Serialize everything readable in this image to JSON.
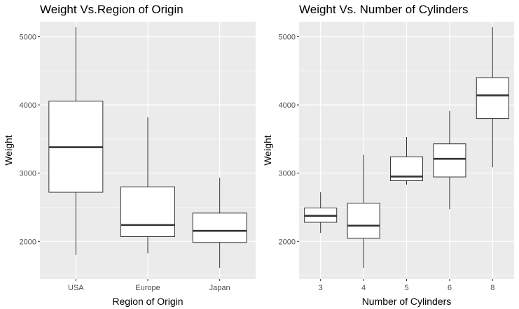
{
  "chart_data": [
    {
      "type": "boxplot",
      "title": "Weight Vs.Region of Origin",
      "xlabel": "Region of Origin",
      "ylabel": "Weight",
      "categories": [
        "USA",
        "Europe",
        "Japan"
      ],
      "ylim": [
        1450,
        5220
      ],
      "yticks": [
        2000,
        3000,
        4000,
        5000
      ],
      "boxes": [
        {
          "category": "USA",
          "min": 1800,
          "q1": 2720,
          "median": 3380,
          "q3": 4055,
          "max": 5140
        },
        {
          "category": "Europe",
          "min": 1825,
          "q1": 2070,
          "median": 2240,
          "q3": 2800,
          "max": 3820
        },
        {
          "category": "Japan",
          "min": 1613,
          "q1": 1985,
          "median": 2155,
          "q3": 2415,
          "max": 2930
        }
      ],
      "grid": true,
      "panel_background": "#ebebeb",
      "grid_color": "#ffffff"
    },
    {
      "type": "boxplot",
      "title": "Weight Vs. Number of Cylinders",
      "xlabel": "Number of Cylinders",
      "ylabel": "Weight",
      "categories": [
        "3",
        "4",
        "5",
        "6",
        "8"
      ],
      "ylim": [
        1450,
        5220
      ],
      "yticks": [
        2000,
        3000,
        4000,
        5000
      ],
      "boxes": [
        {
          "category": "3",
          "min": 2124,
          "q1": 2280,
          "median": 2375,
          "q3": 2490,
          "max": 2720
        },
        {
          "category": "4",
          "min": 1613,
          "q1": 2045,
          "median": 2230,
          "q3": 2560,
          "max": 3270
        },
        {
          "category": "5",
          "min": 2830,
          "q1": 2890,
          "median": 2950,
          "q3": 3240,
          "max": 3530
        },
        {
          "category": "6",
          "min": 2472,
          "q1": 2945,
          "median": 3210,
          "q3": 3430,
          "max": 3910
        },
        {
          "category": "8",
          "min": 3086,
          "q1": 3800,
          "median": 4140,
          "q3": 4400,
          "max": 5140
        }
      ],
      "grid": true,
      "panel_background": "#ebebeb",
      "grid_color": "#ffffff"
    }
  ]
}
